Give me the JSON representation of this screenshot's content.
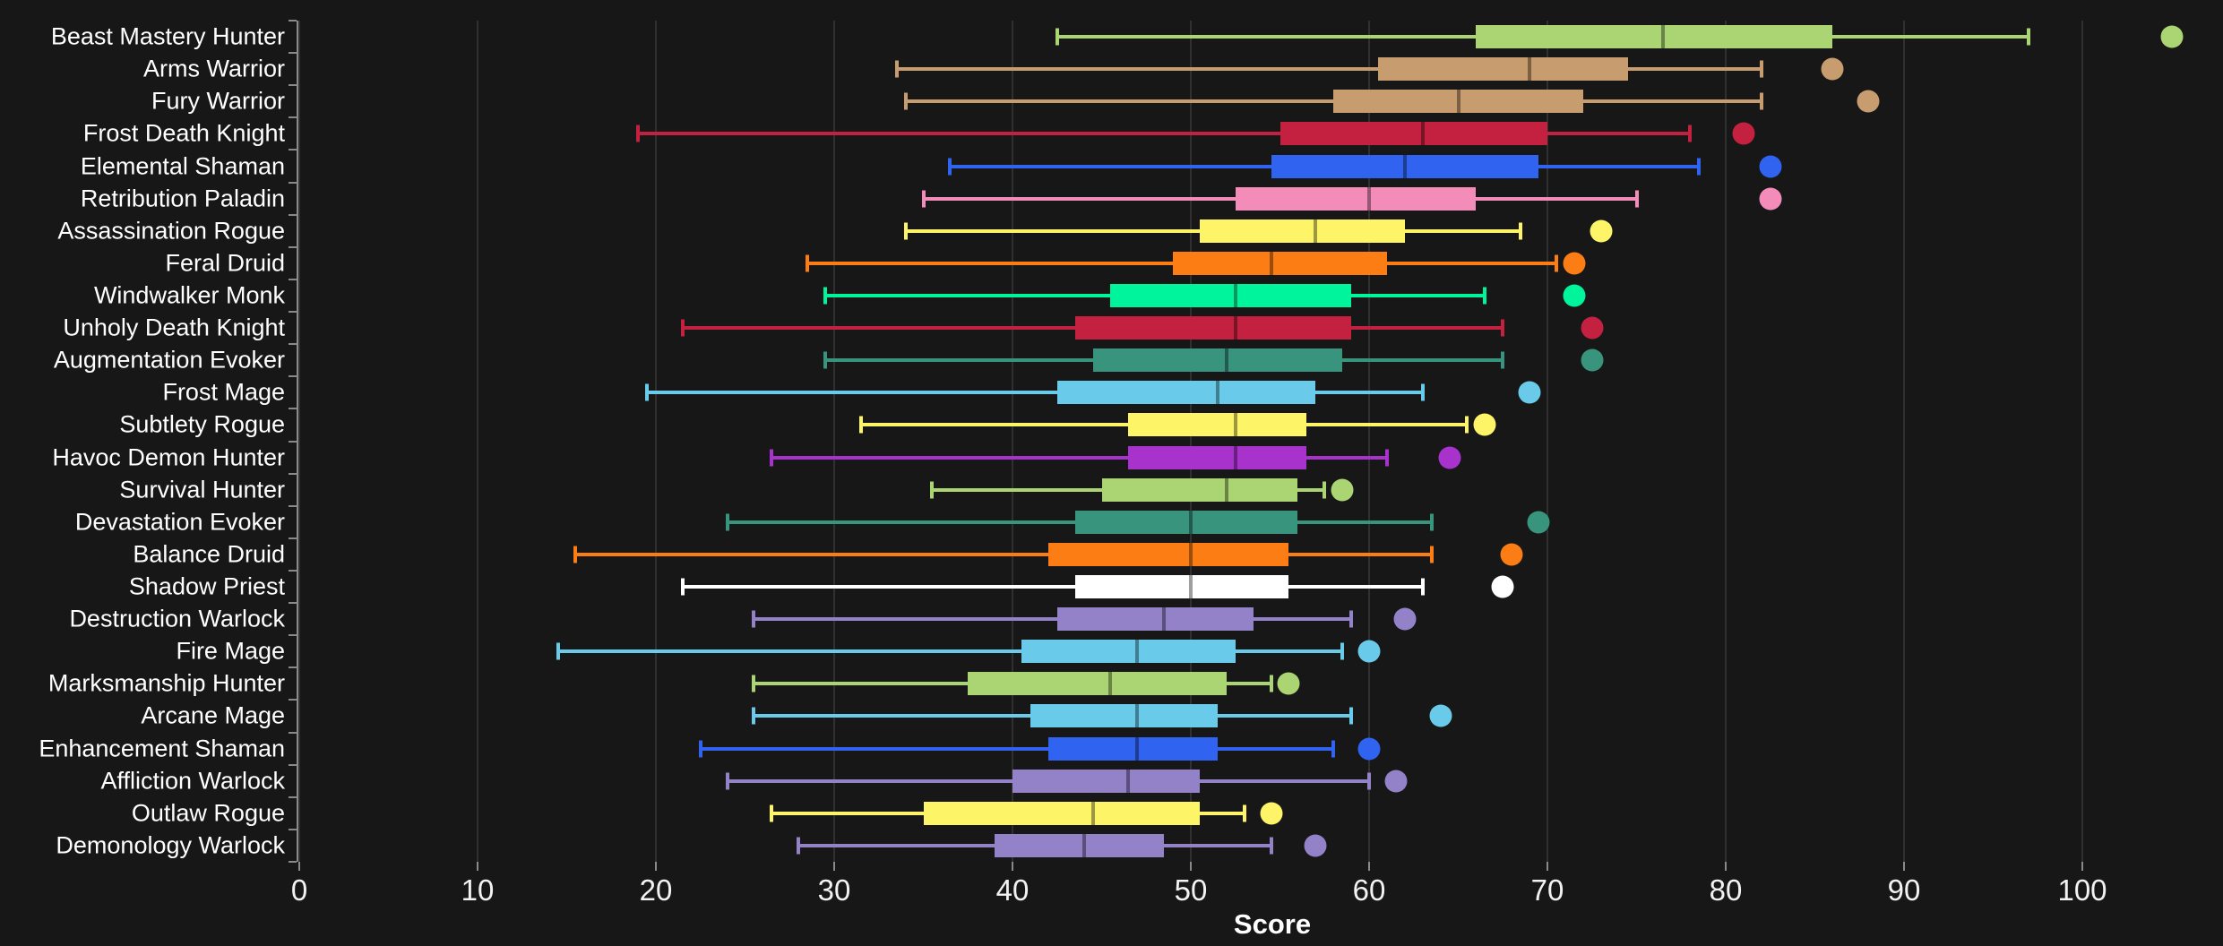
{
  "chart_data": {
    "type": "boxplot",
    "orientation": "horizontal",
    "title": "",
    "xlabel": "Score",
    "ylabel": "",
    "xlim": [
      0,
      108
    ],
    "x_ticks": [
      0,
      10,
      20,
      30,
      40,
      50,
      60,
      70,
      80,
      90,
      100
    ],
    "grid": true,
    "legend": "none",
    "colors": {
      "background": "#171717",
      "gridline": "#303030",
      "axis": "#8a8a8a",
      "text": "#ffffff"
    },
    "series": [
      {
        "label": "Beast Mastery Hunter",
        "color": "#abd473",
        "low": 42.5,
        "q1": 66,
        "median": 76.5,
        "q3": 86,
        "high": 97,
        "point": 105
      },
      {
        "label": "Arms Warrior",
        "color": "#c79c6e",
        "low": 33.5,
        "q1": 60.5,
        "median": 69,
        "q3": 74.5,
        "high": 82,
        "point": 86
      },
      {
        "label": "Fury Warrior",
        "color": "#c79c6e",
        "low": 34,
        "q1": 58,
        "median": 65,
        "q3": 72,
        "high": 82,
        "point": 88
      },
      {
        "label": "Frost Death Knight",
        "color": "#c3213f",
        "low": 19,
        "q1": 55,
        "median": 63,
        "q3": 70,
        "high": 78,
        "point": 81
      },
      {
        "label": "Elemental Shaman",
        "color": "#2f63f0",
        "low": 36.5,
        "q1": 54.5,
        "median": 62,
        "q3": 69.5,
        "high": 78.5,
        "point": 82.5
      },
      {
        "label": "Retribution Paladin",
        "color": "#f48cba",
        "low": 35,
        "q1": 52.5,
        "median": 60,
        "q3": 66,
        "high": 75,
        "point": 82.5
      },
      {
        "label": "Assassination Rogue",
        "color": "#fdf468",
        "low": 34,
        "q1": 50.5,
        "median": 57,
        "q3": 62,
        "high": 68.5,
        "point": 73
      },
      {
        "label": "Feral Druid",
        "color": "#fb7d14",
        "low": 28.5,
        "q1": 49,
        "median": 54.5,
        "q3": 61,
        "high": 70.5,
        "point": 71.5
      },
      {
        "label": "Windwalker Monk",
        "color": "#00f49b",
        "low": 29.5,
        "q1": 45.5,
        "median": 52.5,
        "q3": 59,
        "high": 66.5,
        "point": 71.5
      },
      {
        "label": "Unholy Death Knight",
        "color": "#c3213f",
        "low": 21.5,
        "q1": 43.5,
        "median": 52.5,
        "q3": 59,
        "high": 67.5,
        "point": 72.5
      },
      {
        "label": "Augmentation Evoker",
        "color": "#39947e",
        "low": 29.5,
        "q1": 44.5,
        "median": 52,
        "q3": 58.5,
        "high": 67.5,
        "point": 72.5
      },
      {
        "label": "Frost Mage",
        "color": "#69cbe9",
        "low": 19.5,
        "q1": 42.5,
        "median": 51.5,
        "q3": 57,
        "high": 63,
        "point": 69
      },
      {
        "label": "Subtlety Rogue",
        "color": "#fdf468",
        "low": 31.5,
        "q1": 46.5,
        "median": 52.5,
        "q3": 56.5,
        "high": 65.5,
        "point": 66.5
      },
      {
        "label": "Havoc Demon Hunter",
        "color": "#a832cc",
        "low": 26.5,
        "q1": 46.5,
        "median": 52.5,
        "q3": 56.5,
        "high": 61,
        "point": 64.5
      },
      {
        "label": "Survival Hunter",
        "color": "#abd473",
        "low": 35.5,
        "q1": 45,
        "median": 52,
        "q3": 56,
        "high": 57.5,
        "point": 58.5
      },
      {
        "label": "Devastation Evoker",
        "color": "#39947e",
        "low": 24,
        "q1": 43.5,
        "median": 50,
        "q3": 56,
        "high": 63.5,
        "point": 69.5
      },
      {
        "label": "Balance Druid",
        "color": "#fb7d14",
        "low": 15.5,
        "q1": 42,
        "median": 50,
        "q3": 55.5,
        "high": 63.5,
        "point": 68
      },
      {
        "label": "Shadow Priest",
        "color": "#ffffff",
        "low": 21.5,
        "q1": 43.5,
        "median": 50,
        "q3": 55.5,
        "high": 63,
        "point": 67.5
      },
      {
        "label": "Destruction Warlock",
        "color": "#9482c9",
        "low": 25.5,
        "q1": 42.5,
        "median": 48.5,
        "q3": 53.5,
        "high": 59,
        "point": 62
      },
      {
        "label": "Fire Mage",
        "color": "#69cbe9",
        "low": 14.5,
        "q1": 40.5,
        "median": 47,
        "q3": 52.5,
        "high": 58.5,
        "point": 60
      },
      {
        "label": "Marksmanship Hunter",
        "color": "#abd473",
        "low": 25.5,
        "q1": 37.5,
        "median": 45.5,
        "q3": 52,
        "high": 54.5,
        "point": 55.5
      },
      {
        "label": "Arcane Mage",
        "color": "#69cbe9",
        "low": 25.5,
        "q1": 41,
        "median": 47,
        "q3": 51.5,
        "high": 59,
        "point": 64
      },
      {
        "label": "Enhancement Shaman",
        "color": "#2f63f0",
        "low": 22.5,
        "q1": 42,
        "median": 47,
        "q3": 51.5,
        "high": 58,
        "point": 60
      },
      {
        "label": "Affliction Warlock",
        "color": "#9482c9",
        "low": 24,
        "q1": 40,
        "median": 46.5,
        "q3": 50.5,
        "high": 60,
        "point": 61.5
      },
      {
        "label": "Outlaw Rogue",
        "color": "#fdf468",
        "low": 26.5,
        "q1": 35,
        "median": 44.5,
        "q3": 50.5,
        "high": 53,
        "point": 54.5
      },
      {
        "label": "Demonology Warlock",
        "color": "#9482c9",
        "low": 28,
        "q1": 39,
        "median": 44,
        "q3": 48.5,
        "high": 54.5,
        "point": 57
      }
    ]
  }
}
